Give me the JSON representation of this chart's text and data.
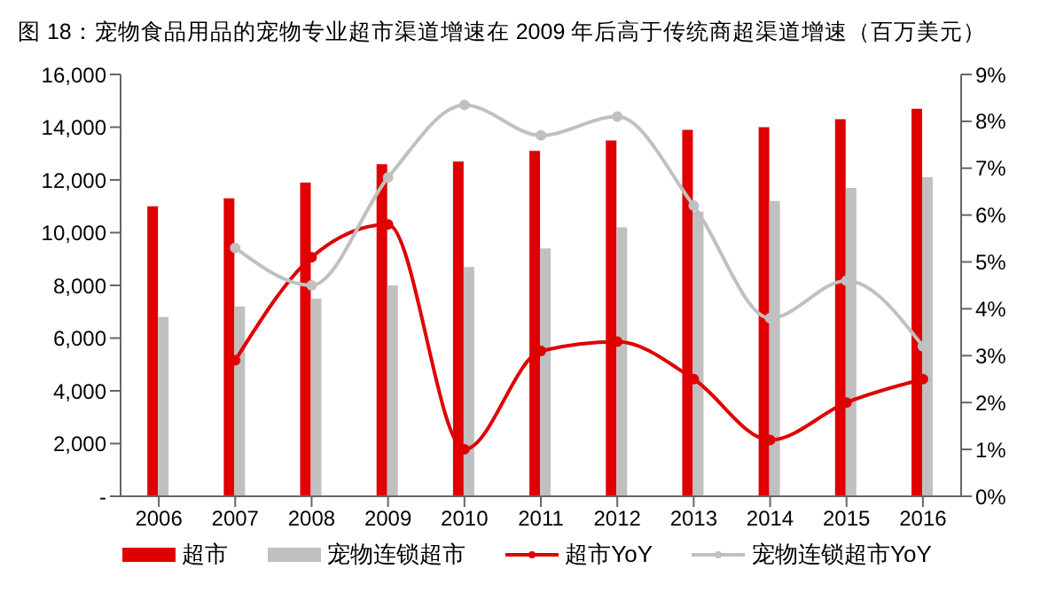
{
  "chart_data": {
    "type": "bar",
    "title": "图 18：宠物食品用品的宠物专业超市渠道增速在 2009 年后高于传统商超渠道增速（百万美元）",
    "categories": [
      "2006",
      "2007",
      "2008",
      "2009",
      "2010",
      "2011",
      "2012",
      "2013",
      "2014",
      "2015",
      "2016"
    ],
    "series": [
      {
        "name": "超市",
        "color": "#e00000",
        "values": [
          11000,
          11300,
          11900,
          12600,
          12700,
          13100,
          13500,
          13900,
          14000,
          14300,
          14700
        ]
      },
      {
        "name": "宠物连锁超市",
        "color": "#c0c0c0",
        "values": [
          6800,
          7200,
          7500,
          8000,
          8700,
          9400,
          10200,
          10800,
          11200,
          11700,
          12100
        ]
      },
      {
        "name": "超市YoY",
        "type": "line",
        "axis": "y2",
        "color": "#e00000",
        "values": [
          null,
          2.9,
          5.1,
          5.8,
          1.0,
          3.1,
          3.3,
          2.5,
          1.2,
          2.0,
          2.5
        ]
      },
      {
        "name": "宠物连锁超市YoY",
        "type": "line",
        "axis": "y2",
        "color": "#c0c0c0",
        "values": [
          null,
          5.3,
          4.5,
          6.8,
          8.35,
          7.7,
          8.1,
          6.2,
          3.8,
          4.6,
          3.2
        ]
      }
    ],
    "ylim": [
      0,
      16000
    ],
    "yticks": [
      {
        "value": 0,
        "label": "-"
      },
      {
        "value": 2000,
        "label": "2,000"
      },
      {
        "value": 4000,
        "label": "4,000"
      },
      {
        "value": 6000,
        "label": "6,000"
      },
      {
        "value": 8000,
        "label": "8,000"
      },
      {
        "value": 10000,
        "label": "10,000"
      },
      {
        "value": 12000,
        "label": "12,000"
      },
      {
        "value": 14000,
        "label": "14,000"
      },
      {
        "value": 16000,
        "label": "16,000"
      }
    ],
    "y2lim": [
      0,
      9
    ],
    "y2ticks": [
      {
        "value": 0,
        "label": "0%"
      },
      {
        "value": 1,
        "label": "1%"
      },
      {
        "value": 2,
        "label": "2%"
      },
      {
        "value": 3,
        "label": "3%"
      },
      {
        "value": 4,
        "label": "4%"
      },
      {
        "value": 5,
        "label": "5%"
      },
      {
        "value": 6,
        "label": "6%"
      },
      {
        "value": 7,
        "label": "7%"
      },
      {
        "value": 8,
        "label": "8%"
      },
      {
        "value": 9,
        "label": "9%"
      }
    ],
    "grid": false,
    "legend": "bottom",
    "marker": "circle",
    "line_style": "solid"
  }
}
